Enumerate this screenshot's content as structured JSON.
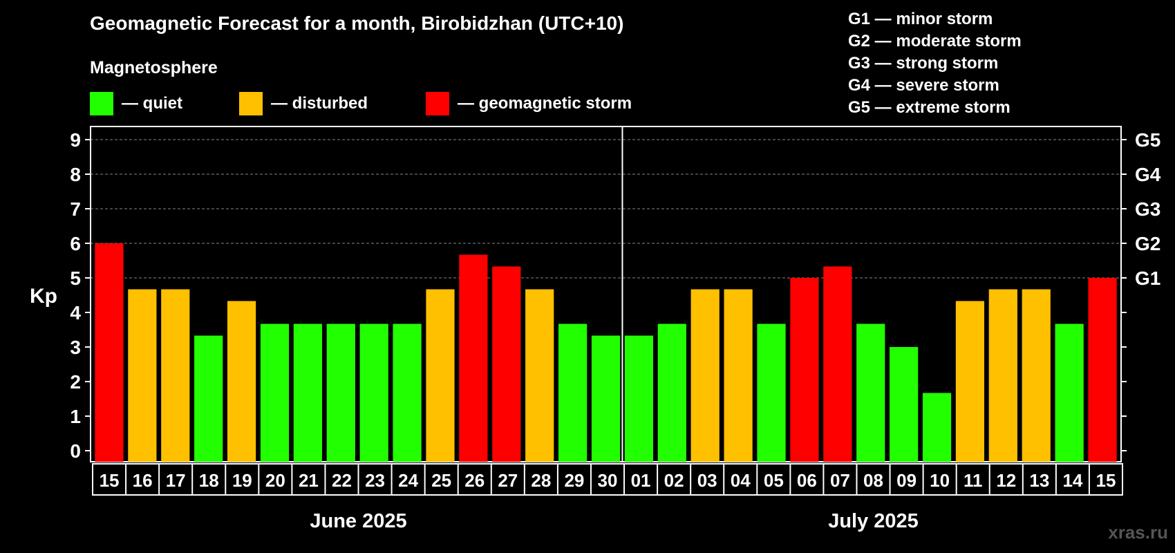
{
  "title": "Geomagnetic Forecast for a month, Birobidzhan (UTC+10)",
  "legend": {
    "heading": "Magnetosphere",
    "items": [
      {
        "label": "— quiet",
        "color": "#22ff00"
      },
      {
        "label": "— disturbed",
        "color": "#ffc000"
      },
      {
        "label": "— geomagnetic storm",
        "color": "#ff0000"
      }
    ]
  },
  "g_legend": [
    "G1 — minor storm",
    "G2 — moderate storm",
    "G3 — strong storm",
    "G4 — severe storm",
    "G5 — extreme storm"
  ],
  "watermark": "xras.ru",
  "chart_data": {
    "type": "bar",
    "ylabel": "Kp",
    "ylim": [
      0,
      9
    ],
    "y_ticks": [
      "0",
      "1",
      "2",
      "3",
      "4",
      "5",
      "6",
      "7",
      "8",
      "9"
    ],
    "right_ticks": [
      {
        "value": 5,
        "label": "G1"
      },
      {
        "value": 6,
        "label": "G2"
      },
      {
        "value": 7,
        "label": "G3"
      },
      {
        "value": 8,
        "label": "G4"
      },
      {
        "value": 9,
        "label": "G5"
      }
    ],
    "grid": "dashed horizontal at Kp 5–9",
    "months": [
      {
        "label": "June 2025",
        "start_index": 0,
        "end_index": 15
      },
      {
        "label": "July 2025",
        "start_index": 16,
        "end_index": 30
      }
    ],
    "categories": [
      "15",
      "16",
      "17",
      "18",
      "19",
      "20",
      "21",
      "22",
      "23",
      "24",
      "25",
      "26",
      "27",
      "28",
      "29",
      "30",
      "01",
      "02",
      "03",
      "04",
      "05",
      "06",
      "07",
      "08",
      "09",
      "10",
      "11",
      "12",
      "13",
      "14",
      "15"
    ],
    "values": [
      6.0,
      4.67,
      4.67,
      3.33,
      4.33,
      3.67,
      3.67,
      3.67,
      3.67,
      3.67,
      4.67,
      5.67,
      5.33,
      4.67,
      3.67,
      3.33,
      3.33,
      3.67,
      4.67,
      4.67,
      3.67,
      5.0,
      5.33,
      3.67,
      3.0,
      1.67,
      4.33,
      4.67,
      4.67,
      3.67,
      5.0
    ],
    "status": [
      "storm",
      "disturbed",
      "disturbed",
      "quiet",
      "disturbed",
      "quiet",
      "quiet",
      "quiet",
      "quiet",
      "quiet",
      "disturbed",
      "storm",
      "storm",
      "disturbed",
      "quiet",
      "quiet",
      "quiet",
      "quiet",
      "disturbed",
      "disturbed",
      "quiet",
      "storm",
      "storm",
      "quiet",
      "quiet",
      "quiet",
      "disturbed",
      "disturbed",
      "disturbed",
      "quiet",
      "storm"
    ],
    "colors": {
      "quiet": "#22ff00",
      "disturbed": "#ffc000",
      "storm": "#ff0000"
    }
  }
}
